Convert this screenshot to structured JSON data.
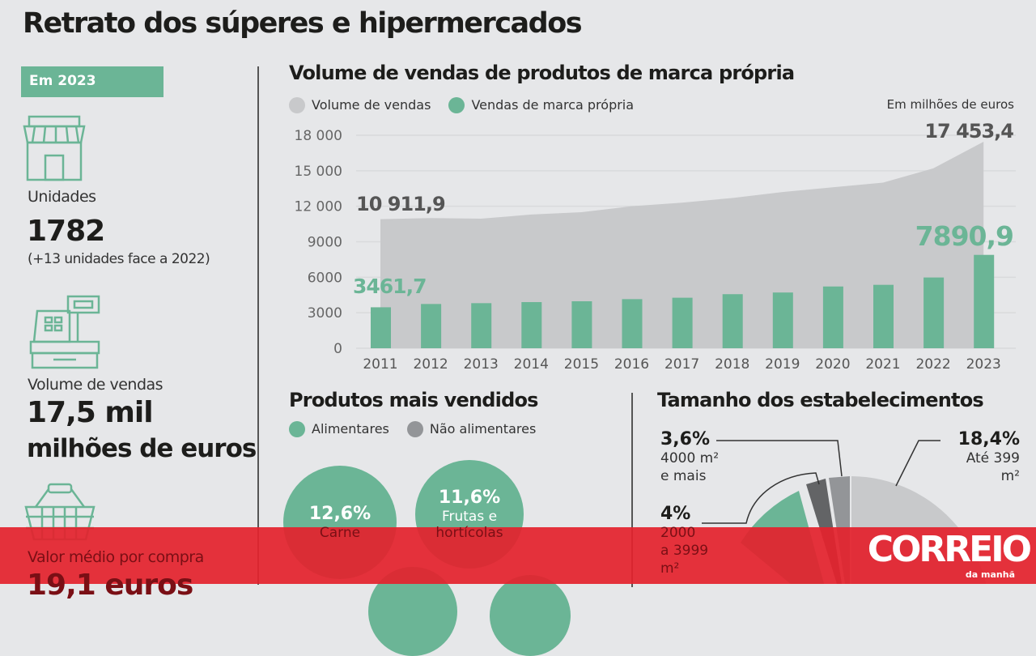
{
  "title": "Retrato dos súperes e hipermercados",
  "left": {
    "badge": "Em 2023",
    "stats": [
      {
        "icon": "store-icon",
        "label": "Unidades",
        "value": "1782",
        "note": "(+13 unidades face a 2022)"
      },
      {
        "icon": "cash-register-icon",
        "label": "Volume de vendas",
        "value": "17,5 mil",
        "value2": "milhões de euros"
      },
      {
        "icon": "basket-icon",
        "label": "Valor médio por compra",
        "value": "19,1 euros"
      }
    ]
  },
  "colors": {
    "green": "#6bb596",
    "gray_area": "#c8c9cb",
    "background": "#e6e7e9",
    "banner": "#e3222d"
  },
  "chart_data": {
    "type": "bar",
    "title": "Volume de vendas de produtos de marca própria",
    "unit_note": "Em milhões de euros",
    "categories": [
      "2011",
      "2012",
      "2013",
      "2014",
      "2015",
      "2016",
      "2017",
      "2018",
      "2019",
      "2020",
      "2021",
      "2022",
      "2023"
    ],
    "series": [
      {
        "name": "Volume de vendas",
        "kind": "area",
        "color": "#c8c9cb",
        "values": [
          10911.9,
          11000,
          10950,
          11300,
          11500,
          12000,
          12300,
          12700,
          13200,
          13600,
          14000,
          15200,
          17453.4
        ]
      },
      {
        "name": "Vendas de marca própria",
        "kind": "bar",
        "color": "#6bb596",
        "values": [
          3461.7,
          3740,
          3810,
          3900,
          3970,
          4150,
          4270,
          4570,
          4710,
          5220,
          5360,
          5980,
          7890.9
        ]
      }
    ],
    "annotations": {
      "area_first": "10 911,9",
      "area_last": "17 453,4",
      "bar_first": "3461,7",
      "bar_last": "7890,9"
    },
    "yticks": [
      "0",
      "3000",
      "6000",
      "9000",
      "12 000",
      "15 000",
      "18 000"
    ],
    "ylim": [
      0,
      18000
    ],
    "grid": true,
    "legend": "top-left"
  },
  "products": {
    "title": "Produtos mais vendidos",
    "legend": [
      "Alimentares",
      "Não alimentares"
    ],
    "items": [
      {
        "pct": "12,6%",
        "name": "Carne"
      },
      {
        "pct": "11,6%",
        "name": "Frutas e",
        "name2": "hortícolas"
      }
    ]
  },
  "sizes": {
    "title": "Tamanho dos estabelecimentos",
    "slices": [
      {
        "pct": "18,4%",
        "label": "Até 399",
        "label2": "m²",
        "color": "#c8c9cb"
      },
      {
        "pct": "3,6%",
        "label": "4000 m²",
        "label2": "e mais",
        "color": "#939598"
      },
      {
        "pct": "4%",
        "label": "2000",
        "label2": "a 3999",
        "label3": "m²",
        "color": "#636466"
      }
    ]
  },
  "brand": {
    "name": "CORREIO",
    "sub": "da manhã"
  }
}
